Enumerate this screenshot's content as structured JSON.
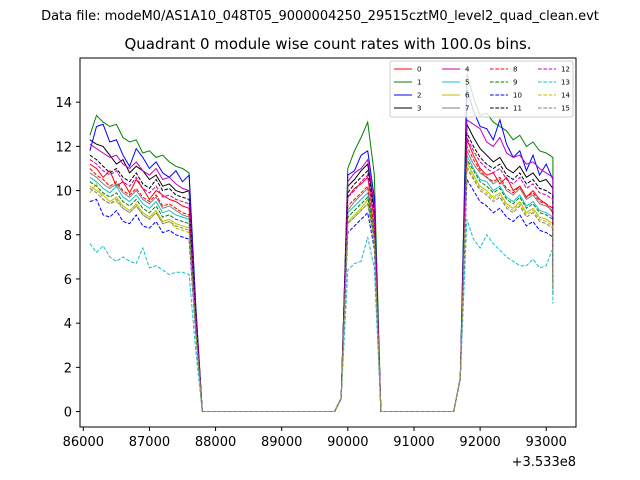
{
  "suptitle": "Data file: modeM0/AS1A10_048T05_9000004250_29515cztM0_level2_quad_clean.evt",
  "chart_data": {
    "type": "line",
    "title": "Quadrant 0 module wise count rates with 100.0s bins.",
    "xlabel": "",
    "ylabel": "",
    "x_offset_label": "+3.533e8",
    "xlim": [
      85950,
      93450
    ],
    "ylim": [
      -0.7,
      16
    ],
    "xticks": [
      86000,
      87000,
      88000,
      89000,
      90000,
      91000,
      92000,
      93000
    ],
    "xtick_labels": [
      "86000",
      "87000",
      "88000",
      "89000",
      "90000",
      "91000",
      "92000",
      "93000"
    ],
    "yticks": [
      0,
      2,
      4,
      6,
      8,
      10,
      12,
      14
    ],
    "ytick_labels": [
      "0",
      "2",
      "4",
      "6",
      "8",
      "10",
      "12",
      "14"
    ],
    "legend_position": "top-right",
    "series": [
      {
        "name": "0",
        "color": "#ff0000",
        "style": "solid",
        "seg1": [
          11.2,
          11.0,
          10.6,
          10.9,
          10.2,
          10.4,
          9.9,
          10.5,
          10.1,
          9.6,
          10.0,
          9.8,
          9.6,
          9.5,
          9.3,
          9.2
        ],
        "seg2": [
          9.7,
          10.1,
          10.3,
          10.6
        ],
        "seg3": [
          12.3,
          11.6,
          11.0,
          10.7,
          10.8,
          10.3,
          10.6,
          10.0,
          10.2,
          9.7,
          10.0,
          9.6,
          9.4,
          9.0
        ]
      },
      {
        "name": "1",
        "color": "#008000",
        "style": "solid",
        "seg1": [
          12.5,
          13.4,
          13.1,
          12.9,
          13.0,
          12.4,
          12.2,
          12.3,
          11.7,
          11.8,
          11.5,
          11.6,
          11.3,
          11.1,
          11.0,
          10.8
        ],
        "seg2": [
          11.0,
          11.8,
          12.4,
          13.1
        ],
        "seg3": [
          15.3,
          14.2,
          13.4,
          13.5,
          13.1,
          12.9,
          12.7,
          12.3,
          12.5,
          12.0,
          12.2,
          11.8,
          11.7,
          11.5
        ]
      },
      {
        "name": "2",
        "color": "#0000ff",
        "style": "solid",
        "seg1": [
          11.8,
          12.9,
          13.0,
          12.2,
          12.3,
          11.6,
          11.1,
          11.9,
          11.5,
          11.0,
          11.3,
          10.8,
          10.6,
          10.9,
          10.4,
          10.7
        ],
        "seg2": [
          10.7,
          10.9,
          11.6,
          11.8
        ],
        "seg3": [
          14.6,
          13.6,
          12.9,
          12.8,
          12.3,
          13.2,
          12.1,
          11.5,
          11.8,
          10.9,
          11.6,
          10.7,
          11.2,
          10.5
        ]
      },
      {
        "name": "3",
        "color": "#000000",
        "style": "solid",
        "seg1": [
          12.3,
          12.1,
          12.0,
          11.6,
          11.2,
          11.4,
          10.8,
          11.1,
          10.9,
          10.5,
          10.7,
          10.2,
          10.3,
          10.0,
          9.9,
          10.0
        ],
        "seg2": [
          10.2,
          10.5,
          10.9,
          11.2
        ],
        "seg3": [
          13.0,
          12.4,
          11.9,
          11.6,
          11.3,
          11.5,
          11.0,
          10.8,
          11.1,
          10.6,
          10.8,
          10.4,
          10.5,
          10.1
        ]
      },
      {
        "name": "4",
        "color": "#bf00bf",
        "style": "solid",
        "seg1": [
          12.1,
          11.9,
          11.7,
          11.5,
          11.6,
          11.2,
          11.0,
          11.3,
          10.9,
          10.7,
          11.0,
          10.5,
          10.6,
          10.3,
          10.1,
          10.0
        ],
        "seg2": [
          10.4,
          10.8,
          11.0,
          11.4
        ],
        "seg3": [
          13.2,
          13.0,
          12.8,
          12.2,
          12.0,
          12.4,
          11.7,
          11.5,
          11.6,
          11.2,
          11.3,
          11.0,
          10.8,
          10.6
        ]
      },
      {
        "name": "5",
        "color": "#17becf",
        "style": "solid",
        "seg1": [
          10.6,
          10.4,
          10.1,
          9.9,
          10.2,
          9.7,
          9.5,
          9.8,
          9.4,
          9.2,
          9.5,
          9.0,
          9.1,
          8.9,
          8.8,
          8.7
        ],
        "seg2": [
          9.0,
          9.3,
          9.6,
          9.9
        ],
        "seg3": [
          11.6,
          11.0,
          10.5,
          10.4,
          10.0,
          10.2,
          9.7,
          9.5,
          9.8,
          9.3,
          9.5,
          9.1,
          9.0,
          8.8
        ]
      },
      {
        "name": "6",
        "color": "#bfbf00",
        "style": "solid",
        "seg1": [
          10.2,
          10.0,
          9.8,
          9.5,
          9.7,
          9.3,
          9.1,
          9.4,
          9.0,
          8.8,
          9.1,
          8.6,
          8.7,
          8.5,
          8.4,
          8.3
        ],
        "seg2": [
          8.6,
          8.9,
          9.2,
          9.6
        ],
        "seg3": [
          11.3,
          10.7,
          10.2,
          10.0,
          9.7,
          9.9,
          9.4,
          9.2,
          9.5,
          9.0,
          9.2,
          8.8,
          8.7,
          8.5
        ]
      },
      {
        "name": "7",
        "color": "#7f7f7f",
        "style": "solid",
        "seg1": [
          10.8,
          10.6,
          10.3,
          10.1,
          10.3,
          9.9,
          9.7,
          10.0,
          9.6,
          9.4,
          9.7,
          9.2,
          9.3,
          9.1,
          8.9,
          8.8
        ],
        "seg2": [
          9.1,
          9.5,
          9.8,
          10.1
        ],
        "seg3": [
          11.8,
          11.2,
          10.8,
          10.6,
          10.3,
          10.5,
          10.0,
          9.8,
          10.1,
          9.6,
          9.8,
          9.4,
          9.3,
          9.1
        ]
      },
      {
        "name": "8",
        "color": "#ff0000",
        "style": "dashed",
        "seg1": [
          11.0,
          10.7,
          10.5,
          10.2,
          10.4,
          10.0,
          9.8,
          10.1,
          9.7,
          9.5,
          9.8,
          9.3,
          9.4,
          9.2,
          9.0,
          8.9
        ],
        "seg2": [
          9.3,
          9.6,
          9.9,
          10.2
        ],
        "seg3": [
          12.0,
          11.4,
          10.9,
          10.6,
          10.4,
          10.6,
          10.1,
          9.9,
          10.2,
          9.7,
          9.9,
          9.5,
          9.4,
          9.2
        ]
      },
      {
        "name": "9",
        "color": "#008000",
        "style": "dashed",
        "seg1": [
          10.4,
          10.2,
          9.9,
          9.7,
          9.9,
          9.5,
          9.3,
          9.6,
          9.2,
          9.0,
          9.3,
          8.8,
          8.9,
          8.7,
          8.6,
          8.5
        ],
        "seg2": [
          8.8,
          9.1,
          9.4,
          9.7
        ],
        "seg3": [
          11.4,
          10.9,
          10.4,
          10.2,
          9.9,
          10.1,
          9.6,
          9.4,
          9.7,
          9.2,
          9.4,
          9.0,
          8.9,
          8.7
        ]
      },
      {
        "name": "10",
        "color": "#0000ff",
        "style": "dashed",
        "seg1": [
          9.5,
          9.6,
          8.9,
          8.8,
          9.1,
          8.6,
          8.5,
          8.9,
          8.4,
          8.3,
          8.6,
          8.1,
          8.2,
          8.0,
          7.9,
          7.8
        ],
        "seg2": [
          8.1,
          8.4,
          8.7,
          9.0
        ],
        "seg3": [
          10.5,
          10.0,
          9.5,
          9.3,
          9.0,
          9.2,
          8.8,
          8.6,
          8.9,
          8.4,
          8.6,
          8.2,
          8.1,
          7.9
        ]
      },
      {
        "name": "11",
        "color": "#000000",
        "style": "dashed",
        "seg1": [
          11.6,
          11.4,
          11.1,
          10.8,
          11.0,
          10.6,
          10.4,
          10.8,
          10.3,
          10.1,
          10.5,
          10.0,
          10.1,
          9.8,
          9.7,
          9.6
        ],
        "seg2": [
          9.9,
          10.3,
          10.6,
          10.9
        ],
        "seg3": [
          12.6,
          12.0,
          11.5,
          11.2,
          11.0,
          11.2,
          10.7,
          10.5,
          10.8,
          10.3,
          10.5,
          10.1,
          10.0,
          9.8
        ]
      },
      {
        "name": "12",
        "color": "#bf00bf",
        "style": "dashed",
        "seg1": [
          11.4,
          11.2,
          10.9,
          10.7,
          10.9,
          10.4,
          10.2,
          10.6,
          10.1,
          9.9,
          10.2,
          9.7,
          9.8,
          9.6,
          9.5,
          9.4
        ],
        "seg2": [
          9.7,
          10.0,
          10.4,
          10.7
        ],
        "seg3": [
          12.4,
          11.8,
          11.3,
          11.0,
          10.8,
          11.0,
          10.5,
          10.3,
          10.6,
          10.1,
          10.3,
          9.9,
          9.8,
          9.6
        ]
      },
      {
        "name": "13",
        "color": "#17becf",
        "style": "dashed",
        "seg1": [
          7.6,
          7.2,
          7.5,
          7.0,
          6.8,
          7.0,
          6.8,
          6.7,
          7.4,
          6.5,
          6.6,
          6.4,
          6.2,
          6.3,
          6.3,
          6.2
        ],
        "seg2": [
          6.4,
          6.7,
          6.8,
          7.9
        ],
        "seg3": [
          8.7,
          7.8,
          7.4,
          8.0,
          7.6,
          7.3,
          7.0,
          6.8,
          6.6,
          6.6,
          6.9,
          6.5,
          6.6,
          7.4
        ]
      },
      {
        "name": "14",
        "color": "#bfbf00",
        "style": "dashed",
        "seg1": [
          9.9,
          10.3,
          9.6,
          9.4,
          9.5,
          9.2,
          9.0,
          9.3,
          8.9,
          8.7,
          9.0,
          8.5,
          8.6,
          8.3,
          8.2,
          8.1
        ],
        "seg2": [
          8.5,
          8.8,
          9.1,
          9.4
        ],
        "seg3": [
          11.1,
          10.6,
          10.1,
          9.9,
          9.6,
          9.8,
          9.3,
          9.1,
          9.4,
          8.9,
          9.1,
          8.7,
          8.6,
          8.4
        ]
      },
      {
        "name": "15",
        "color": "#7f7f7f",
        "style": "dashed",
        "seg1": [
          10.1,
          9.9,
          9.6,
          9.4,
          9.6,
          9.2,
          9.0,
          9.3,
          8.9,
          8.7,
          9.0,
          8.5,
          8.6,
          8.4,
          8.3,
          8.2
        ],
        "seg2": [
          8.5,
          8.8,
          9.1,
          9.4
        ],
        "seg3": [
          11.0,
          10.5,
          10.0,
          9.8,
          9.5,
          9.7,
          9.2,
          9.0,
          9.3,
          8.8,
          9.0,
          8.6,
          8.5,
          8.3
        ]
      }
    ]
  }
}
